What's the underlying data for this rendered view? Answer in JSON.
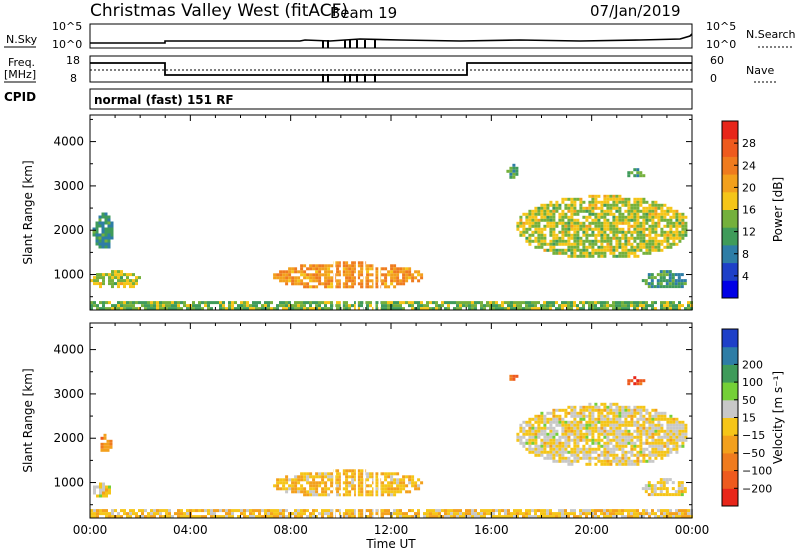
{
  "header": {
    "station": "Christmas Valley West (fitACF)",
    "beam": "Beam 19",
    "date": "07/Jan/2019"
  },
  "strip": {
    "nsky_label": "N.Sky",
    "nsky_ticks": [
      "10^5",
      "10^0"
    ],
    "nsearch_label": "N.Search",
    "nsearch_ticks": [
      "10^5",
      "10^0"
    ],
    "freq_label": "Freq.",
    "freq_unit": "[MHz]",
    "freq_ticks": [
      "18",
      "8"
    ],
    "nave_label": "Nave",
    "nave_ticks": [
      "60",
      "0"
    ],
    "cpid_label": "CPID",
    "cpid_value": "normal (fast) 151 RF"
  },
  "chart_data": [
    {
      "type": "heatmap",
      "panel": "power",
      "ylabel": "Slant Range [km]",
      "xlabel": "",
      "yticks": [
        1000,
        2000,
        3000,
        4000
      ],
      "ylim": [
        200,
        4600
      ],
      "xlim": [
        0,
        24
      ],
      "colorbar": {
        "label": "Power [dB]",
        "ticks": [
          4,
          8,
          12,
          16,
          20,
          24,
          28
        ],
        "range": [
          0,
          32
        ],
        "colors": [
          "#0000e6",
          "#1e40c8",
          "#2e7da6",
          "#3f9b5a",
          "#74b03c",
          "#f5c518",
          "#f3a01c",
          "#ef7b1e",
          "#ee5a1e",
          "#e8261a"
        ]
      },
      "regions": [
        {
          "x": [
            0.1,
            0.9
          ],
          "y": [
            1600,
            2400
          ],
          "value": 10
        },
        {
          "x": [
            0.0,
            2.0
          ],
          "y": [
            700,
            1100
          ],
          "value": 16
        },
        {
          "x": [
            7.3,
            13.2
          ],
          "y": [
            700,
            1300
          ],
          "value": 22
        },
        {
          "x": [
            16.6,
            17.0
          ],
          "y": [
            3200,
            3500
          ],
          "value": 12
        },
        {
          "x": [
            17.0,
            23.8
          ],
          "y": [
            1400,
            2800
          ],
          "value": 16
        },
        {
          "x": [
            21.3,
            22.1
          ],
          "y": [
            3200,
            3400
          ],
          "value": 12
        },
        {
          "x": [
            22.0,
            23.8
          ],
          "y": [
            700,
            1100
          ],
          "value": 10
        },
        {
          "x": [
            0.0,
            24.0
          ],
          "y": [
            200,
            400
          ],
          "value": 14
        }
      ]
    },
    {
      "type": "heatmap",
      "panel": "velocity",
      "ylabel": "Slant Range [km]",
      "xlabel": "Time UT",
      "xticks": [
        "00:00",
        "04:00",
        "08:00",
        "12:00",
        "16:00",
        "20:00",
        "00:00"
      ],
      "yticks": [
        1000,
        2000,
        3000,
        4000
      ],
      "ylim": [
        200,
        4600
      ],
      "xlim": [
        0,
        24
      ],
      "colorbar": {
        "label": "Velocity [m s⁻¹]",
        "ticks": [
          -200,
          -100,
          -50,
          -15,
          15,
          50,
          100,
          200
        ],
        "range": [
          -250,
          250
        ],
        "colors": [
          "#e8261a",
          "#ee5a1e",
          "#ef7b1e",
          "#f3a01c",
          "#f5c518",
          "#c8c8c8",
          "#74d037",
          "#3f9b5a",
          "#2e7da6",
          "#1e40c8"
        ]
      },
      "regions": [
        {
          "x": [
            0.3,
            0.8
          ],
          "y": [
            1700,
            2100
          ],
          "value": -100
        },
        {
          "x": [
            0.0,
            0.8
          ],
          "y": [
            700,
            1000
          ],
          "value": 0
        },
        {
          "x": [
            7.3,
            13.2
          ],
          "y": [
            700,
            1300
          ],
          "value": -40
        },
        {
          "x": [
            16.6,
            17.0
          ],
          "y": [
            3300,
            3500
          ],
          "value": -150
        },
        {
          "x": [
            17.0,
            23.8
          ],
          "y": [
            1400,
            2800
          ],
          "value": 0
        },
        {
          "x": [
            21.3,
            22.1
          ],
          "y": [
            3200,
            3400
          ],
          "value": -180
        },
        {
          "x": [
            22.0,
            23.8
          ],
          "y": [
            700,
            1100
          ],
          "value": 0
        },
        {
          "x": [
            0.0,
            24.0
          ],
          "y": [
            200,
            400
          ],
          "value": -30
        }
      ]
    }
  ]
}
